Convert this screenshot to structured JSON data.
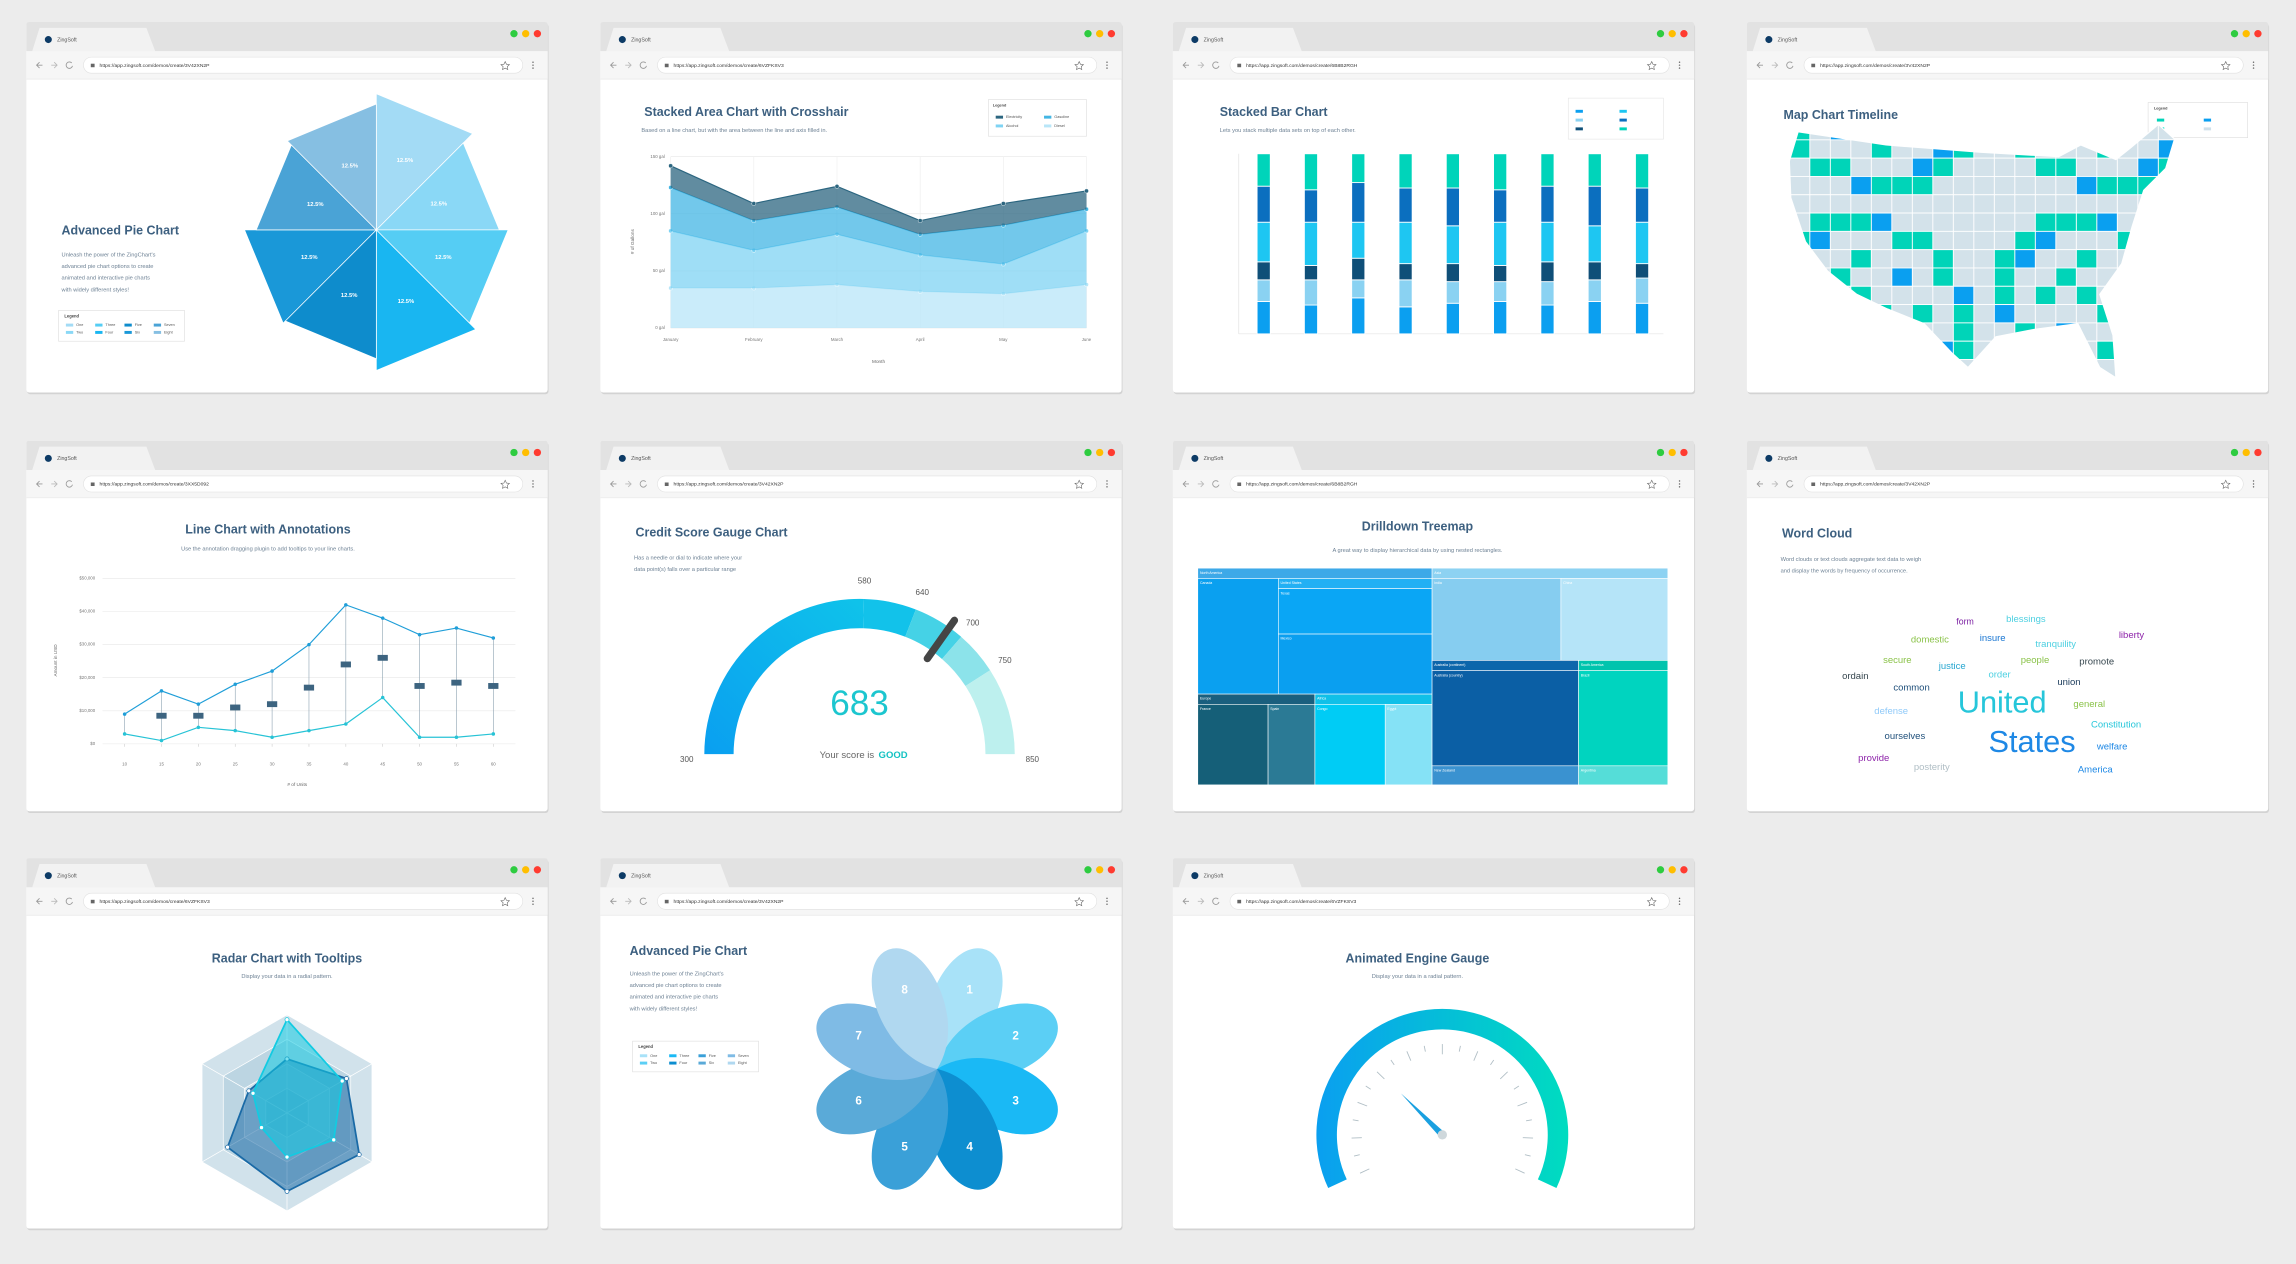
{
  "windows": [
    {
      "tab": "ZingSoft",
      "url": "https://app.zingsoft.com/demos/create/3V42XN2P",
      "type": "pie",
      "title": "Advanced Pie Chart",
      "subtitle": [
        "Unleash the power of the ZingChart's",
        "advanced pie chart options to create",
        "animated and interactive pie charts",
        "with widely different styles!"
      ],
      "values": [
        12.5,
        12.5,
        12.5,
        12.5,
        12.5,
        12.5,
        12.5,
        12.5
      ],
      "value_labels": [
        "12.5%",
        "12.5%",
        "12.5%",
        "12.5%",
        "12.5%",
        "12.5%",
        "12.5%",
        "12.5%"
      ],
      "colors": [
        "#a3dbf5",
        "#8ad8f6",
        "#55cdf4",
        "#19b6f1",
        "#0e8ccc",
        "#1a98d8",
        "#4aa3d6",
        "#86bfe2"
      ],
      "legend_title": "Legend",
      "legend": [
        "One",
        "Two",
        "Three",
        "Four",
        "Five",
        "Six",
        "Seven",
        "Eight"
      ]
    },
    {
      "tab": "ZingSoft",
      "url": "https://app.zingsoft.com/demos/create/6VZFKSV3",
      "type": "area",
      "title": "Stacked Area Chart with Crosshair",
      "subtitle": [
        "Based on a line chart, but with the area between the line and axis filled in."
      ],
      "categories": [
        "January",
        "February",
        "March",
        "April",
        "May",
        "June"
      ],
      "series": [
        {
          "name": "Diesel",
          "color": "#b8e6f8",
          "values": [
            35,
            35,
            38,
            32,
            30,
            38
          ]
        },
        {
          "name": "Alcohol",
          "color": "#7fd3f3",
          "values": [
            50,
            33,
            44,
            32,
            26,
            47
          ]
        },
        {
          "name": "Gasoline",
          "color": "#43b6e4",
          "values": [
            38,
            26,
            24,
            18,
            34,
            19
          ]
        },
        {
          "name": "Electricity",
          "color": "#2c6680",
          "values": [
            19,
            15,
            18,
            12,
            19,
            16
          ]
        }
      ],
      "ylim": [
        0,
        150
      ],
      "yticks": [
        {
          "value": 0,
          "label": "0 gal"
        },
        {
          "value": 50,
          "label": "50 gal"
        },
        {
          "value": 100,
          "label": "100 gal"
        },
        {
          "value": 150,
          "label": "150 gal"
        }
      ],
      "xlabel": "Month",
      "ylabel": "# of Gallons",
      "legend_title": "Legend"
    },
    {
      "tab": "ZingSoft",
      "url": "https://app.zingsoft.com/demos/create/6B8B2RGH",
      "type": "bar",
      "title": "Stacked Bar Chart",
      "subtitle": [
        "Lets you stack multiple data sets on top of each other."
      ],
      "series": [
        {
          "color": "#0b9ff0",
          "values": [
            18,
            16,
            20,
            15,
            17,
            18,
            16,
            18,
            17
          ]
        },
        {
          "color": "#8ad2f2",
          "values": [
            12,
            14,
            10,
            15,
            12,
            11,
            13,
            12,
            14
          ]
        },
        {
          "color": "#0f4f78",
          "values": [
            10,
            8,
            12,
            9,
            10,
            9,
            11,
            10,
            8
          ]
        },
        {
          "color": "#1ec6f2",
          "values": [
            22,
            24,
            20,
            23,
            21,
            24,
            22,
            20,
            23
          ]
        },
        {
          "color": "#0b6fbf",
          "values": [
            20,
            18,
            22,
            19,
            21,
            18,
            20,
            22,
            19
          ]
        },
        {
          "color": "#00d4ba",
          "values": [
            18,
            20,
            16,
            19,
            19,
            20,
            18,
            18,
            19
          ]
        }
      ],
      "ylim": [
        0,
        100
      ]
    },
    {
      "tab": "ZingSoft",
      "url": "https://app.zingsoft.com/demos/create/3V42XN2P",
      "type": "map",
      "title": "Map Chart Timeline",
      "legend_title": "Legend"
    },
    {
      "tab": "ZingSoft",
      "url": "https://app.zingsoft.com/demos/create/3XX5D092",
      "type": "line",
      "title": "Line Chart with Annotations",
      "subtitle": [
        "Use the annotation dragging plugin to add tooltips to your line charts."
      ],
      "x": [
        10,
        15,
        20,
        25,
        30,
        35,
        40,
        45,
        50,
        55,
        60
      ],
      "series": [
        {
          "color": "#1f9ed8",
          "values": [
            9000,
            16000,
            12000,
            18000,
            22000,
            30000,
            42000,
            38000,
            33000,
            35000,
            32000
          ]
        },
        {
          "color": "#27c3d6",
          "values": [
            3000,
            1000,
            5000,
            4000,
            2000,
            4000,
            6000,
            14000,
            2000,
            2000,
            3000
          ]
        }
      ],
      "xlim": [
        7,
        63
      ],
      "xticks": [
        10,
        15,
        20,
        25,
        30,
        35,
        40,
        45,
        50,
        55,
        60
      ],
      "ylim": [
        0,
        50000
      ],
      "yticks": [
        {
          "value": 0,
          "label": "$0"
        },
        {
          "value": 10000,
          "label": "$10,000"
        },
        {
          "value": 20000,
          "label": "$20,000"
        },
        {
          "value": 30000,
          "label": "$30,000"
        },
        {
          "value": 40000,
          "label": "$40,000"
        },
        {
          "value": 50000,
          "label": "$50,000"
        }
      ],
      "xlabel": "# of Units",
      "ylabel": "Amount in USD"
    },
    {
      "tab": "ZingSoft",
      "url": "https://app.zingsoft.com/demos/create/3V42XN2P",
      "type": "gauge",
      "title": "Credit Score Gauge Chart",
      "subtitle": [
        "Has a needle or dial to indicate where your",
        "data point(s) falls over a particular range"
      ],
      "range": [
        300,
        850
      ],
      "ticks": [
        300,
        580,
        640,
        700,
        750,
        850
      ],
      "band_colors": [
        "#0aa6ee",
        "#12c2ea",
        "#45d2e6",
        "#8ce3ea",
        "#bdf0ee"
      ],
      "value": 683,
      "caption": "Your score is",
      "rating": "GOOD"
    },
    {
      "tab": "ZingSoft",
      "url": "https://app.zingsoft.com/demos/create/6B8B2RGH",
      "type": "treemap",
      "title": "Drilldown Treemap",
      "subtitle": [
        "A great way to display hierarchical data by using nested rectangles."
      ],
      "nodes": [
        "North America",
        "Canada",
        "United States",
        "Texas",
        "Mexico",
        "Europe",
        "France",
        "Spain",
        "Africa",
        "Congo",
        "Egypt",
        "Asia",
        "India",
        "China",
        "Australia (continent)",
        "Australia (country)",
        "New Zealand",
        "South America",
        "Brazil",
        "Argentina"
      ]
    },
    {
      "tab": "ZingSoft",
      "url": "https://app.zingsoft.com/demos/create/3V42XN2P",
      "type": "wordcloud",
      "title": "Word Cloud",
      "subtitle": [
        "Word clouds or text clouds aggregate text data to weigh",
        "and display the words by frequency of occurrence."
      ],
      "words": [
        "form",
        "blessings",
        "liberty",
        "domestic",
        "insure",
        "tranquility",
        "secure",
        "justice",
        "people",
        "promote",
        "ordain",
        "order",
        "union",
        "common",
        "United",
        "general",
        "defense",
        "Constitution",
        "ourselves",
        "States",
        "welfare",
        "provide",
        "posterity",
        "America"
      ]
    },
    {
      "tab": "ZingSoft",
      "url": "https://app.zingsoft.com/demos/create/6VZFKSV3",
      "type": "radar",
      "title": "Radar Chart with Tooltips",
      "subtitle": [
        "Display your data in a radial pattern."
      ],
      "rlim": [
        0,
        100
      ],
      "series": [
        {
          "color": "#1a6aa6",
          "values": [
            55,
            70,
            85,
            80,
            70,
            45
          ]
        },
        {
          "color": "#12cbe2",
          "values": [
            95,
            65,
            55,
            45,
            30,
            40
          ]
        }
      ]
    },
    {
      "tab": "ZingSoft",
      "url": "https://app.zingsoft.com/demos/create/3V42XN2P",
      "type": "petal",
      "title": "Advanced Pie Chart",
      "subtitle": [
        "Unleash the power of the ZingChart's",
        "advanced pie chart options to create",
        "animated and interactive pie charts",
        "with widely different styles!"
      ],
      "labels": [
        1,
        2,
        3,
        4,
        5,
        6,
        7,
        8
      ],
      "colors": [
        "#a8e2f8",
        "#5bcff5",
        "#1ab9f5",
        "#0d8ed0",
        "#3aa0d8",
        "#5aaad8",
        "#7fbbe5",
        "#b0d8f0"
      ],
      "legend_title": "Legend",
      "legend": [
        "One",
        "Two",
        "Three",
        "Four",
        "Five",
        "Six",
        "Seven",
        "Eight"
      ]
    },
    {
      "tab": "ZingSoft",
      "url": "https://app.zingsoft.com/demos/create/6VZFKSV3",
      "type": "engine",
      "title": "Animated Engine Gauge",
      "subtitle": [
        "Display your data in a radial pattern."
      ]
    }
  ]
}
